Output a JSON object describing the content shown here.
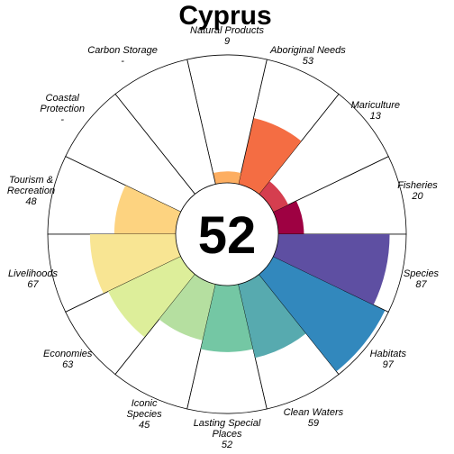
{
  "chart_data": {
    "type": "rose",
    "title": "Cyprus",
    "overall_score": "52",
    "max_value": 100,
    "petals": [
      {
        "label": "Fisheries",
        "value": 20,
        "value_label": "20",
        "color": "#9E0142"
      },
      {
        "label": "Mariculture",
        "value": 13,
        "value_label": "13",
        "color": "#D53E4F"
      },
      {
        "label": "Aboriginal Needs",
        "value": 53,
        "value_label": "53",
        "color": "#F46D43"
      },
      {
        "label": "Natural Products",
        "value": 9,
        "value_label": "9",
        "color": "#FDAE61"
      },
      {
        "label": "Carbon Storage",
        "value": null,
        "value_label": "-",
        "color": "#FEE08B"
      },
      {
        "label": "Coastal Protection",
        "value": null,
        "value_label": "-",
        "color": "#FFFFBF"
      },
      {
        "label": "Tourism & Recreation",
        "value": 48,
        "value_label": "48",
        "color": "#FDD380"
      },
      {
        "label": "Livelihoods",
        "value": 67,
        "value_label": "67",
        "color": "#F8E593"
      },
      {
        "label": "Economies",
        "value": 63,
        "value_label": "63",
        "color": "#DDEE9A"
      },
      {
        "label": "Iconic Species",
        "value": 45,
        "value_label": "45",
        "color": "#B5DFA0"
      },
      {
        "label": "Lasting Special Places",
        "value": 52,
        "value_label": "52",
        "color": "#74C7A4"
      },
      {
        "label": "Clean Waters",
        "value": 59,
        "value_label": "59",
        "color": "#57AAAF"
      },
      {
        "label": "Habitats",
        "value": 97,
        "value_label": "97",
        "color": "#3288BD"
      },
      {
        "label": "Species",
        "value": 87,
        "value_label": "87",
        "color": "#5E4FA2"
      }
    ]
  }
}
